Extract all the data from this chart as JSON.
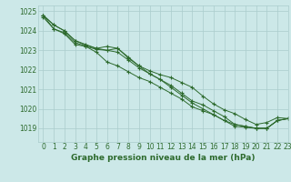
{
  "xlabel": "Graphe pression niveau de la mer (hPa)",
  "xlim": [
    -0.5,
    23
  ],
  "ylim": [
    1018.3,
    1025.3
  ],
  "yticks": [
    1019,
    1020,
    1021,
    1022,
    1023,
    1024,
    1025
  ],
  "xticks": [
    0,
    1,
    2,
    3,
    4,
    5,
    6,
    7,
    8,
    9,
    10,
    11,
    12,
    13,
    14,
    15,
    16,
    17,
    18,
    19,
    20,
    21,
    22,
    23
  ],
  "bg_color": "#cce8e8",
  "grid_color": "#aacccc",
  "line_color": "#2d6a2d",
  "series": [
    [
      1024.8,
      1024.3,
      1024.0,
      1023.5,
      1023.25,
      1023.1,
      1023.2,
      1023.1,
      1022.6,
      1022.2,
      1021.8,
      1021.5,
      1021.1,
      1020.7,
      1020.3,
      1020.0,
      1019.7,
      1019.4,
      1019.1,
      1019.05,
      1019.0,
      1019.0,
      1019.4,
      1019.5
    ],
    [
      1024.8,
      1024.3,
      1024.0,
      1023.5,
      1023.3,
      1023.1,
      1023.0,
      1022.9,
      1022.5,
      1022.1,
      1021.8,
      1021.5,
      1021.2,
      1020.8,
      1020.4,
      1020.2,
      1019.9,
      1019.6,
      1019.2,
      1019.1,
      1019.0,
      1019.0,
      1019.4,
      1019.5
    ],
    [
      1024.8,
      1024.1,
      1023.9,
      1023.4,
      1023.2,
      1022.9,
      1022.4,
      1022.2,
      1021.9,
      1021.6,
      1021.4,
      1021.1,
      1020.8,
      1020.5,
      1020.1,
      1019.9,
      1019.7,
      1019.4,
      1019.2,
      1019.1,
      1019.0,
      1019.0,
      1019.4,
      1019.5
    ],
    [
      1024.7,
      1024.1,
      1023.85,
      1023.3,
      1023.2,
      1023.05,
      1023.0,
      1023.1,
      1022.65,
      1022.2,
      1021.95,
      1021.75,
      1021.6,
      1021.35,
      1021.1,
      1020.65,
      1020.25,
      1019.95,
      1019.75,
      1019.45,
      1019.2,
      1019.3,
      1019.55,
      1019.5
    ]
  ],
  "tick_fontsize": 5.5,
  "xlabel_fontsize": 6.5
}
